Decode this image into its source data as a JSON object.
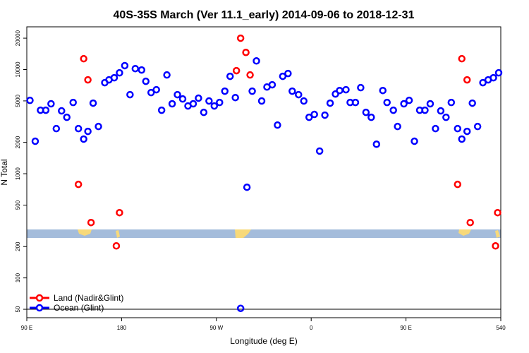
{
  "chart_data": {
    "type": "scatter",
    "title": "40S-35S March (Ver 11.1_early)   2014-09-06 to 2018-12-31",
    "x_label": "Longitude (deg E)",
    "y_label": "N Total",
    "log_y": true,
    "legend": "bottom-left",
    "xlim": [
      90,
      540
    ],
    "xticks": [
      {
        "value": 90,
        "label": "90 E"
      },
      180,
      {
        "value": 270,
        "label": "90 W"
      },
      {
        "value": 360,
        "label": "0"
      },
      {
        "value": 450,
        "label": "90 E"
      },
      540
    ],
    "ylim": [
      41.5,
      25700
    ],
    "yticks": [
      50,
      100,
      200,
      500,
      1000,
      2000,
      5000,
      10000,
      20000
    ],
    "series": [
      {
        "name": "Land (Nadir&Glint)",
        "color": "#ff0000",
        "x": [
          139,
          144,
          148,
          151,
          175,
          178,
          289,
          293,
          298,
          302,
          499,
          503,
          508,
          511,
          535,
          537
        ],
        "values": [
          790,
          12700,
          7960,
          340,
          203,
          423,
          9750,
          20000,
          14600,
          8870,
          790,
          12700,
          7960,
          340,
          203,
          423
        ]
      },
      {
        "name": "Ocean (Glint)",
        "color": "#0000ff",
        "x": [
          93,
          98,
          103,
          108,
          113,
          118,
          123,
          128,
          134,
          139,
          144,
          148,
          153,
          158,
          164,
          168,
          173,
          178,
          183,
          188,
          193,
          199,
          203,
          208,
          213,
          218,
          223,
          228,
          233,
          238,
          243,
          248,
          253,
          258,
          263,
          268,
          273,
          278,
          283,
          288,
          293,
          299,
          304,
          308,
          313,
          318,
          323,
          328,
          333,
          338,
          342,
          348,
          353,
          358,
          363,
          368,
          373,
          378,
          383,
          387,
          393,
          397,
          402,
          407,
          412,
          417,
          422,
          428,
          432,
          438,
          442,
          448,
          453,
          458,
          463,
          468,
          473,
          478,
          483,
          488,
          493,
          499,
          503,
          508,
          513,
          518,
          523,
          528,
          533,
          538
        ],
        "values": [
          5060,
          2050,
          4070,
          4070,
          4690,
          2710,
          4010,
          3480,
          4830,
          2710,
          2150,
          2550,
          4760,
          2840,
          7480,
          7960,
          8340,
          9300,
          10900,
          5740,
          10200,
          9900,
          7710,
          6010,
          6400,
          4070,
          8870,
          4690,
          5740,
          5220,
          4470,
          4690,
          5310,
          3880,
          4990,
          4470,
          4830,
          6200,
          8610,
          5380,
          51,
          742,
          6200,
          12100,
          4990,
          6800,
          7140,
          2930,
          8610,
          9160,
          6200,
          5740,
          4990,
          3480,
          3710,
          1650,
          3650,
          4760,
          5820,
          6290,
          6400,
          4830,
          4830,
          6700,
          3880,
          3480,
          1920,
          6290,
          4830,
          4070,
          2840,
          4690,
          5060,
          2050,
          4070,
          4070,
          4690,
          2710,
          4010,
          3480,
          4830,
          2710,
          2150,
          2550,
          4760,
          2840,
          7480,
          7960,
          8340,
          9300
        ]
      }
    ]
  }
}
